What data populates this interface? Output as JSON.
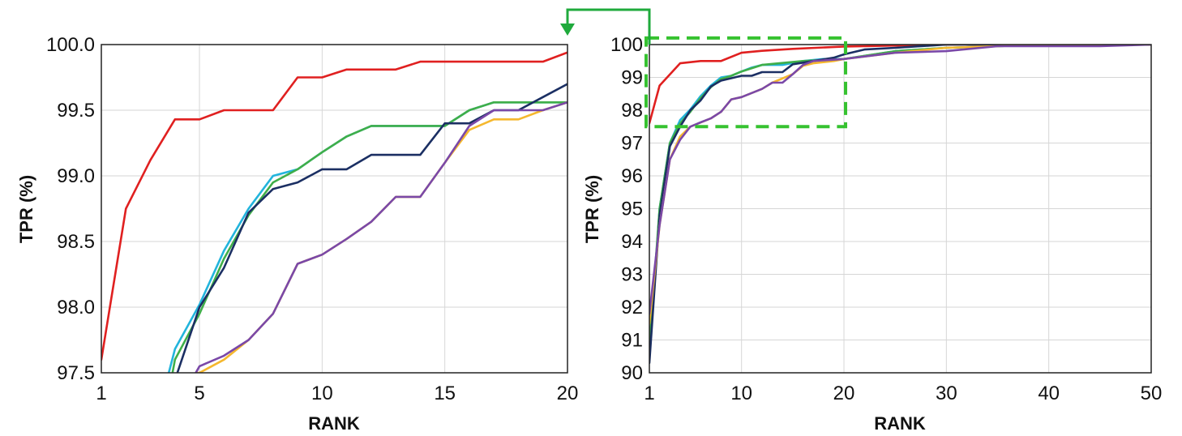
{
  "colors": {
    "red": "#e02020",
    "blue": "#22b4dc",
    "navy": "#1b2f63",
    "green": "#3fae49",
    "orange": "#f5b82e",
    "purple": "#7a48a8",
    "zoom_box": "#36c230",
    "arrow": "#1faa3c"
  },
  "chart_data": [
    {
      "type": "line",
      "title": "",
      "xlabel": "RANK",
      "ylabel": "TPR (%)",
      "xlim": [
        1,
        20
      ],
      "ylim": [
        97.5,
        100.0
      ],
      "xticks": [
        "1",
        "5",
        "10",
        "15",
        "20"
      ],
      "yticks": [
        "97.5",
        "98.0",
        "98.5",
        "99.0",
        "99.5",
        "100.0"
      ],
      "grid": true,
      "legend": "none",
      "series": [
        {
          "color": "red",
          "x": [
            1,
            2,
            3,
            4,
            5,
            6,
            7,
            8,
            9,
            10,
            11,
            12,
            13,
            14,
            15,
            16,
            17,
            18,
            19,
            20
          ],
          "y": [
            97.6,
            98.75,
            99.12,
            99.43,
            99.43,
            99.5,
            99.5,
            99.5,
            99.75,
            99.75,
            99.81,
            99.81,
            99.81,
            99.87,
            99.87,
            99.87,
            99.87,
            99.87,
            99.87,
            99.94
          ]
        },
        {
          "color": "blue",
          "x": [
            3.75,
            4,
            5,
            6,
            7,
            8,
            9,
            10,
            11,
            12,
            13,
            14,
            15,
            16,
            17,
            18,
            19,
            20
          ],
          "y": [
            97.5,
            97.68,
            98.02,
            98.43,
            98.75,
            99.0,
            99.05,
            99.18,
            99.3,
            99.38,
            99.38,
            99.38,
            99.38,
            99.5,
            99.56,
            99.56,
            99.56,
            99.56
          ]
        },
        {
          "color": "green",
          "x": [
            3.9,
            4,
            5,
            6,
            7,
            8,
            9,
            10,
            11,
            12,
            13,
            14,
            15,
            16,
            17,
            18,
            19,
            20
          ],
          "y": [
            97.5,
            97.6,
            97.95,
            98.37,
            98.7,
            98.95,
            99.05,
            99.18,
            99.3,
            99.38,
            99.38,
            99.38,
            99.38,
            99.5,
            99.56,
            99.56,
            99.56,
            99.56
          ]
        },
        {
          "color": "navy",
          "x": [
            4.1,
            5,
            6,
            7,
            8,
            9,
            10,
            11,
            12,
            13,
            14,
            15,
            16,
            17,
            18,
            19,
            20
          ],
          "y": [
            97.5,
            98.0,
            98.3,
            98.72,
            98.9,
            98.95,
            99.05,
            99.05,
            99.16,
            99.16,
            99.16,
            99.4,
            99.4,
            99.5,
            99.5,
            99.6,
            99.7
          ]
        },
        {
          "color": "orange",
          "x": [
            4.9,
            5,
            6,
            7,
            8,
            9,
            10,
            11,
            12,
            13,
            14,
            15,
            16,
            17,
            18,
            19,
            20
          ],
          "y": [
            97.5,
            97.5,
            97.6,
            97.75,
            97.95,
            98.33,
            98.4,
            98.52,
            98.65,
            98.84,
            98.84,
            99.1,
            99.35,
            99.43,
            99.43,
            99.5,
            99.56
          ]
        },
        {
          "color": "purple",
          "x": [
            4.85,
            5,
            6,
            7,
            8,
            9,
            10,
            11,
            12,
            13,
            14,
            15,
            16,
            17,
            18,
            19,
            20
          ],
          "y": [
            97.5,
            97.55,
            97.63,
            97.75,
            97.95,
            98.33,
            98.4,
            98.52,
            98.65,
            98.84,
            98.84,
            99.1,
            99.38,
            99.5,
            99.5,
            99.5,
            99.56
          ]
        }
      ]
    },
    {
      "type": "line",
      "title": "",
      "xlabel": "RANK",
      "ylabel": "TPR (%)",
      "xlim": [
        1,
        50
      ],
      "ylim": [
        90,
        100
      ],
      "xticks": [
        "1",
        "10",
        "20",
        "30",
        "40",
        "50"
      ],
      "yticks": [
        "90",
        "91",
        "92",
        "93",
        "94",
        "95",
        "96",
        "97",
        "98",
        "99",
        "100"
      ],
      "grid": true,
      "legend": "none",
      "zoom_region": {
        "x": [
          1,
          20
        ],
        "y": [
          97.5,
          100.2
        ]
      },
      "series": [
        {
          "color": "red",
          "x": [
            1,
            2,
            4,
            6,
            8,
            10,
            12,
            15,
            20,
            25,
            30,
            40,
            50
          ],
          "y": [
            97.6,
            98.75,
            99.43,
            99.5,
            99.5,
            99.75,
            99.81,
            99.87,
            99.94,
            99.97,
            100,
            100,
            100
          ]
        },
        {
          "color": "blue",
          "x": [
            1,
            2,
            3,
            4,
            5,
            6,
            7,
            8,
            9,
            10,
            11,
            12,
            14,
            16,
            18,
            20,
            25,
            30,
            40,
            50
          ],
          "y": [
            90.5,
            95.0,
            97.0,
            97.7,
            98.02,
            98.43,
            98.75,
            99.0,
            99.05,
            99.18,
            99.3,
            99.38,
            99.38,
            99.5,
            99.56,
            99.56,
            99.8,
            99.9,
            100,
            100
          ]
        },
        {
          "color": "green",
          "x": [
            1,
            2,
            3,
            4,
            5,
            6,
            7,
            8,
            9,
            10,
            12,
            16,
            20,
            25,
            30,
            40,
            50
          ],
          "y": [
            90.8,
            95.0,
            97.0,
            97.6,
            97.95,
            98.37,
            98.7,
            98.95,
            99.05,
            99.18,
            99.38,
            99.5,
            99.56,
            99.8,
            99.9,
            100,
            100
          ]
        },
        {
          "color": "navy",
          "x": [
            1,
            2,
            3,
            4,
            5,
            6,
            7,
            8,
            10,
            11,
            12,
            14,
            15,
            17,
            19,
            20,
            22,
            25,
            30,
            40,
            50
          ],
          "y": [
            90.3,
            94.8,
            96.9,
            97.5,
            98.0,
            98.3,
            98.72,
            98.9,
            99.05,
            99.05,
            99.16,
            99.16,
            99.4,
            99.5,
            99.6,
            99.7,
            99.85,
            99.9,
            100,
            100,
            100
          ]
        },
        {
          "color": "orange",
          "x": [
            1,
            2,
            3,
            4,
            5,
            7,
            8,
            9,
            10,
            12,
            13,
            15,
            16,
            17,
            19,
            20,
            25,
            30,
            40,
            50
          ],
          "y": [
            91.5,
            94.5,
            96.5,
            97.2,
            97.5,
            97.75,
            97.95,
            98.33,
            98.4,
            98.65,
            98.84,
            99.1,
            99.35,
            99.43,
            99.5,
            99.56,
            99.75,
            99.9,
            100,
            100
          ]
        },
        {
          "color": "purple",
          "x": [
            1,
            2,
            3,
            4,
            5,
            6,
            7,
            8,
            9,
            10,
            12,
            13,
            14,
            15,
            16,
            17,
            20,
            25,
            30,
            35,
            40,
            45,
            50
          ],
          "y": [
            91.8,
            94.5,
            96.5,
            97.1,
            97.5,
            97.63,
            97.75,
            97.95,
            98.33,
            98.4,
            98.65,
            98.84,
            98.84,
            99.1,
            99.38,
            99.5,
            99.56,
            99.75,
            99.8,
            99.95,
            99.95,
            99.95,
            100
          ]
        }
      ]
    }
  ]
}
